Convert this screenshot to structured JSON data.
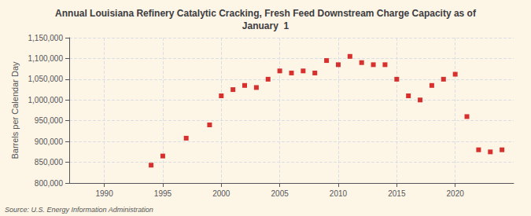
{
  "chart_data": {
    "type": "scatter",
    "title": "Annual Louisiana Refinery Catalytic Cracking, Fresh Feed Downstream Charge Capacity as of\nJanuary  1",
    "ylabel": "Barrels per Calendar Day",
    "annotation": "Source: U.S. Energy Information Administration",
    "color": "#cc0000",
    "marker": "square",
    "x": [
      1994,
      1995,
      1997,
      1999,
      2000,
      2001,
      2002,
      2003,
      2004,
      2005,
      2006,
      2007,
      2008,
      2009,
      2010,
      2011,
      2012,
      2013,
      2014,
      2015,
      2016,
      2017,
      2018,
      2019,
      2020,
      2021,
      2022,
      2023,
      2024
    ],
    "values": [
      843000,
      865000,
      908000,
      940000,
      1010000,
      1025000,
      1035000,
      1030000,
      1050000,
      1070000,
      1065000,
      1070000,
      1065000,
      1095000,
      1085000,
      1105000,
      1090000,
      1085000,
      1085000,
      1050000,
      1010000,
      1000000,
      1035000,
      1050000,
      1062000,
      960000,
      880000,
      875000,
      880000
    ],
    "xlim": [
      1987,
      2025
    ],
    "xticks": [
      1990,
      1995,
      2000,
      2005,
      2010,
      2015,
      2020
    ],
    "ylim": [
      800000,
      1150000
    ],
    "yticks": [
      {
        "value": 800000,
        "label": "800,000"
      },
      {
        "value": 850000,
        "label": "850,000"
      },
      {
        "value": 900000,
        "label": "900,000"
      },
      {
        "value": 950000,
        "label": "950,000"
      },
      {
        "value": 1000000,
        "label": "1,000,000"
      },
      {
        "value": 1050000,
        "label": "1,050,000"
      },
      {
        "value": 1100000,
        "label": "1,100,000"
      },
      {
        "value": 1150000,
        "label": "1,150,000"
      }
    ],
    "grid": true
  }
}
